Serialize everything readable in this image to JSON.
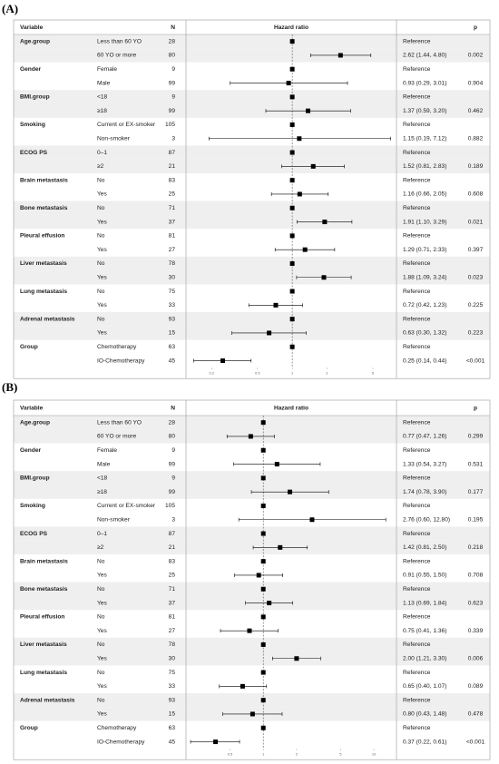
{
  "chart_data": [
    {
      "type": "forest",
      "label": "(A)",
      "columns": [
        "Variable",
        "N",
        "Hazard ratio",
        "p"
      ],
      "log_scale": true,
      "xlim": [
        0.12,
        8
      ],
      "xticks": [
        0.2,
        0.5,
        1,
        2,
        5
      ],
      "color": "#000000",
      "rows": [
        {
          "variable": "Age.group",
          "level": "Less than 60 YO",
          "n": 28,
          "hr": 1,
          "estimate": "Reference"
        },
        {
          "level": "60 YO or more",
          "n": 80,
          "hr": 2.62,
          "lower": 1.44,
          "upper": 4.8,
          "estimate": "2.62 (1.44, 4.80)",
          "p": "0.002"
        },
        {
          "variable": "Gender",
          "level": "Female",
          "n": 9,
          "hr": 1,
          "estimate": "Reference"
        },
        {
          "level": "Male",
          "n": 99,
          "hr": 0.93,
          "lower": 0.29,
          "upper": 3.01,
          "estimate": "0.93 (0.29, 3.01)",
          "p": "0.904"
        },
        {
          "variable": "BMI.group",
          "level": "<18",
          "n": 9,
          "hr": 1,
          "estimate": "Reference"
        },
        {
          "level": "≥18",
          "n": 99,
          "hr": 1.37,
          "lower": 0.59,
          "upper": 3.2,
          "estimate": "1.37 (0.59, 3.20)",
          "p": "0.462"
        },
        {
          "variable": "Smoking",
          "level": "Current or EX-smoker",
          "n": 105,
          "hr": 1,
          "estimate": "Reference"
        },
        {
          "level": "Non-smoker",
          "n": 3,
          "hr": 1.15,
          "lower": 0.19,
          "upper": 7.12,
          "estimate": "1.15 (0.19, 7.12)",
          "p": "0.882"
        },
        {
          "variable": "ECOG PS",
          "level": "0–1",
          "n": 87,
          "hr": 1,
          "estimate": "Reference"
        },
        {
          "level": "≥2",
          "n": 21,
          "hr": 1.52,
          "lower": 0.81,
          "upper": 2.83,
          "estimate": "1.52 (0.81, 2.83)",
          "p": "0.189"
        },
        {
          "variable": "Brain metastasis",
          "level": "No",
          "n": 83,
          "hr": 1,
          "estimate": "Reference"
        },
        {
          "level": "Yes",
          "n": 25,
          "hr": 1.16,
          "lower": 0.66,
          "upper": 2.05,
          "estimate": "1.16 (0.66, 2.05)",
          "p": "0.608"
        },
        {
          "variable": "Bone metastasis",
          "level": "No",
          "n": 71,
          "hr": 1,
          "estimate": "Reference"
        },
        {
          "level": "Yes",
          "n": 37,
          "hr": 1.91,
          "lower": 1.1,
          "upper": 3.29,
          "estimate": "1.91 (1.10, 3.29)",
          "p": "0.021"
        },
        {
          "variable": "Pleural effusion",
          "level": "No",
          "n": 81,
          "hr": 1,
          "estimate": "Reference"
        },
        {
          "level": "Yes",
          "n": 27,
          "hr": 1.29,
          "lower": 0.71,
          "upper": 2.33,
          "estimate": "1.29 (0.71, 2.33)",
          "p": "0.397"
        },
        {
          "variable": "Liver metastasis",
          "level": "No",
          "n": 78,
          "hr": 1,
          "estimate": "Reference"
        },
        {
          "level": "Yes",
          "n": 30,
          "hr": 1.88,
          "lower": 1.09,
          "upper": 3.24,
          "estimate": "1.88 (1.09, 3.24)",
          "p": "0.023"
        },
        {
          "variable": "Lung metastasis",
          "level": "No",
          "n": 75,
          "hr": 1,
          "estimate": "Reference"
        },
        {
          "level": "Yes",
          "n": 33,
          "hr": 0.72,
          "lower": 0.42,
          "upper": 1.23,
          "estimate": "0.72 (0.42, 1.23)",
          "p": "0.225"
        },
        {
          "variable": "Adrenal metastasis",
          "level": "No",
          "n": 93,
          "hr": 1,
          "estimate": "Reference"
        },
        {
          "level": "Yes",
          "n": 15,
          "hr": 0.63,
          "lower": 0.3,
          "upper": 1.32,
          "estimate": "0.63 (0.30, 1.32)",
          "p": "0.223"
        },
        {
          "variable": "Group",
          "level": "Chemotherapy",
          "n": 63,
          "hr": 1,
          "estimate": "Reference"
        },
        {
          "level": "IO-Chemotherapy",
          "n": 45,
          "hr": 0.25,
          "lower": 0.14,
          "upper": 0.44,
          "estimate": "0.25 (0.14, 0.44)",
          "p": "<0.001"
        }
      ]
    },
    {
      "type": "forest",
      "label": "(B)",
      "columns": [
        "Variable",
        "N",
        "Hazard ratio",
        "p"
      ],
      "log_scale": true,
      "xlim": [
        0.2,
        16
      ],
      "xticks": [
        0.5,
        1,
        2,
        5,
        10
      ],
      "color": "#000000",
      "rows": [
        {
          "variable": "Age.group",
          "level": "Less than 60 YO",
          "n": 28,
          "hr": 1,
          "estimate": "Reference"
        },
        {
          "level": "60 YO or more",
          "n": 80,
          "hr": 0.77,
          "lower": 0.47,
          "upper": 1.26,
          "estimate": "0.77 (0.47, 1.26)",
          "p": "0.299"
        },
        {
          "variable": "Gender",
          "level": "Female",
          "n": 9,
          "hr": 1,
          "estimate": "Reference"
        },
        {
          "level": "Male",
          "n": 99,
          "hr": 1.33,
          "lower": 0.54,
          "upper": 3.27,
          "estimate": "1.33 (0.54, 3.27)",
          "p": "0.531"
        },
        {
          "variable": "BMI.group",
          "level": "<18",
          "n": 9,
          "hr": 1,
          "estimate": "Reference"
        },
        {
          "level": "≥18",
          "n": 99,
          "hr": 1.74,
          "lower": 0.78,
          "upper": 3.9,
          "estimate": "1.74 (0.78, 3.90)",
          "p": "0.177"
        },
        {
          "variable": "Smoking",
          "level": "Current or EX-smoker",
          "n": 105,
          "hr": 1,
          "estimate": "Reference"
        },
        {
          "level": "Non-smoker",
          "n": 3,
          "hr": 2.76,
          "lower": 0.6,
          "upper": 12.8,
          "estimate": "2.76 (0.60, 12.80)",
          "p": "0.195"
        },
        {
          "variable": "ECOG PS",
          "level": "0–1",
          "n": 87,
          "hr": 1,
          "estimate": "Reference"
        },
        {
          "level": "≥2",
          "n": 21,
          "hr": 1.42,
          "lower": 0.81,
          "upper": 2.5,
          "estimate": "1.42 (0.81, 2.50)",
          "p": "0.218"
        },
        {
          "variable": "Brain metastasis",
          "level": "No",
          "n": 83,
          "hr": 1,
          "estimate": "Reference"
        },
        {
          "level": "Yes",
          "n": 25,
          "hr": 0.91,
          "lower": 0.55,
          "upper": 1.5,
          "estimate": "0.91 (0.55, 1.50)",
          "p": "0.708"
        },
        {
          "variable": "Bone metastasis",
          "level": "No",
          "n": 71,
          "hr": 1,
          "estimate": "Reference"
        },
        {
          "level": "Yes",
          "n": 37,
          "hr": 1.13,
          "lower": 0.69,
          "upper": 1.84,
          "estimate": "1.13 (0.69, 1.84)",
          "p": "0.623"
        },
        {
          "variable": "Pleural effusion",
          "level": "No",
          "n": 81,
          "hr": 1,
          "estimate": "Reference"
        },
        {
          "level": "Yes",
          "n": 27,
          "hr": 0.75,
          "lower": 0.41,
          "upper": 1.36,
          "estimate": "0.75 (0.41, 1.36)",
          "p": "0.339"
        },
        {
          "variable": "Liver metastasis",
          "level": "No",
          "n": 78,
          "hr": 1,
          "estimate": "Reference"
        },
        {
          "level": "Yes",
          "n": 30,
          "hr": 2.0,
          "lower": 1.21,
          "upper": 3.3,
          "estimate": "2.00 (1.21, 3.30)",
          "p": "0.006"
        },
        {
          "variable": "Lung metastasis",
          "level": "No",
          "n": 75,
          "hr": 1,
          "estimate": "Reference"
        },
        {
          "level": "Yes",
          "n": 33,
          "hr": 0.65,
          "lower": 0.4,
          "upper": 1.07,
          "estimate": "0.65 (0.40, 1.07)",
          "p": "0.089"
        },
        {
          "variable": "Adrenal metastasis",
          "level": "No",
          "n": 93,
          "hr": 1,
          "estimate": "Reference"
        },
        {
          "level": "Yes",
          "n": 15,
          "hr": 0.8,
          "lower": 0.43,
          "upper": 1.48,
          "estimate": "0.80 (0.43, 1.48)",
          "p": "0.478"
        },
        {
          "variable": "Group",
          "level": "Chemotherapy",
          "n": 63,
          "hr": 1,
          "estimate": "Reference"
        },
        {
          "level": "IO-Chemotherapy",
          "n": 45,
          "hr": 0.37,
          "lower": 0.22,
          "upper": 0.61,
          "estimate": "0.37 (0.22, 0.61)",
          "p": "<0.001"
        }
      ]
    }
  ]
}
